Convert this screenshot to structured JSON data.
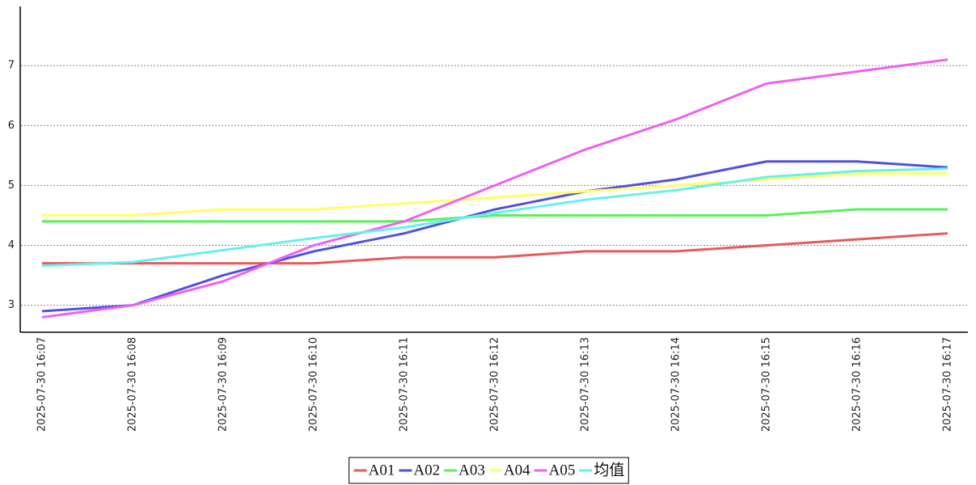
{
  "chart_data": {
    "type": "line",
    "categories": [
      "2025-07-30 16:07",
      "2025-07-30 16:08",
      "2025-07-30 16:09",
      "2025-07-30 16:10",
      "2025-07-30 16:11",
      "2025-07-30 16:12",
      "2025-07-30 16:13",
      "2025-07-30 16:14",
      "2025-07-30 16:15",
      "2025-07-30 16:16",
      "2025-07-30 16:17"
    ],
    "series": [
      {
        "name": "A01",
        "color": "#e85a5a",
        "values": [
          3.7,
          3.7,
          3.7,
          3.7,
          3.8,
          3.8,
          3.9,
          3.9,
          4.0,
          4.1,
          4.2
        ]
      },
      {
        "name": "A02",
        "color": "#5050e0",
        "values": [
          2.9,
          3.0,
          3.5,
          3.9,
          4.2,
          4.6,
          4.9,
          5.1,
          5.4,
          5.4,
          5.3
        ]
      },
      {
        "name": "A03",
        "color": "#5af05a",
        "values": [
          4.4,
          4.4,
          4.4,
          4.4,
          4.4,
          4.5,
          4.5,
          4.5,
          4.5,
          4.6,
          4.6
        ]
      },
      {
        "name": "A04",
        "color": "#ffff66",
        "values": [
          4.5,
          4.5,
          4.6,
          4.6,
          4.7,
          4.8,
          4.9,
          5.0,
          5.1,
          5.2,
          5.2
        ]
      },
      {
        "name": "A05",
        "color": "#f060f0",
        "values": [
          2.8,
          3.0,
          3.4,
          4.0,
          4.4,
          5.0,
          5.6,
          6.1,
          6.7,
          6.9,
          7.1
        ]
      },
      {
        "name": "均值",
        "color": "#66f0f0",
        "values": [
          3.66,
          3.72,
          3.92,
          4.12,
          4.3,
          4.54,
          4.76,
          4.92,
          5.14,
          5.24,
          5.28
        ]
      }
    ],
    "ylim": [
      2.55,
      8.0
    ],
    "yticks": [
      3,
      4,
      5,
      6,
      7
    ],
    "grid": true,
    "legend": "bottom"
  }
}
